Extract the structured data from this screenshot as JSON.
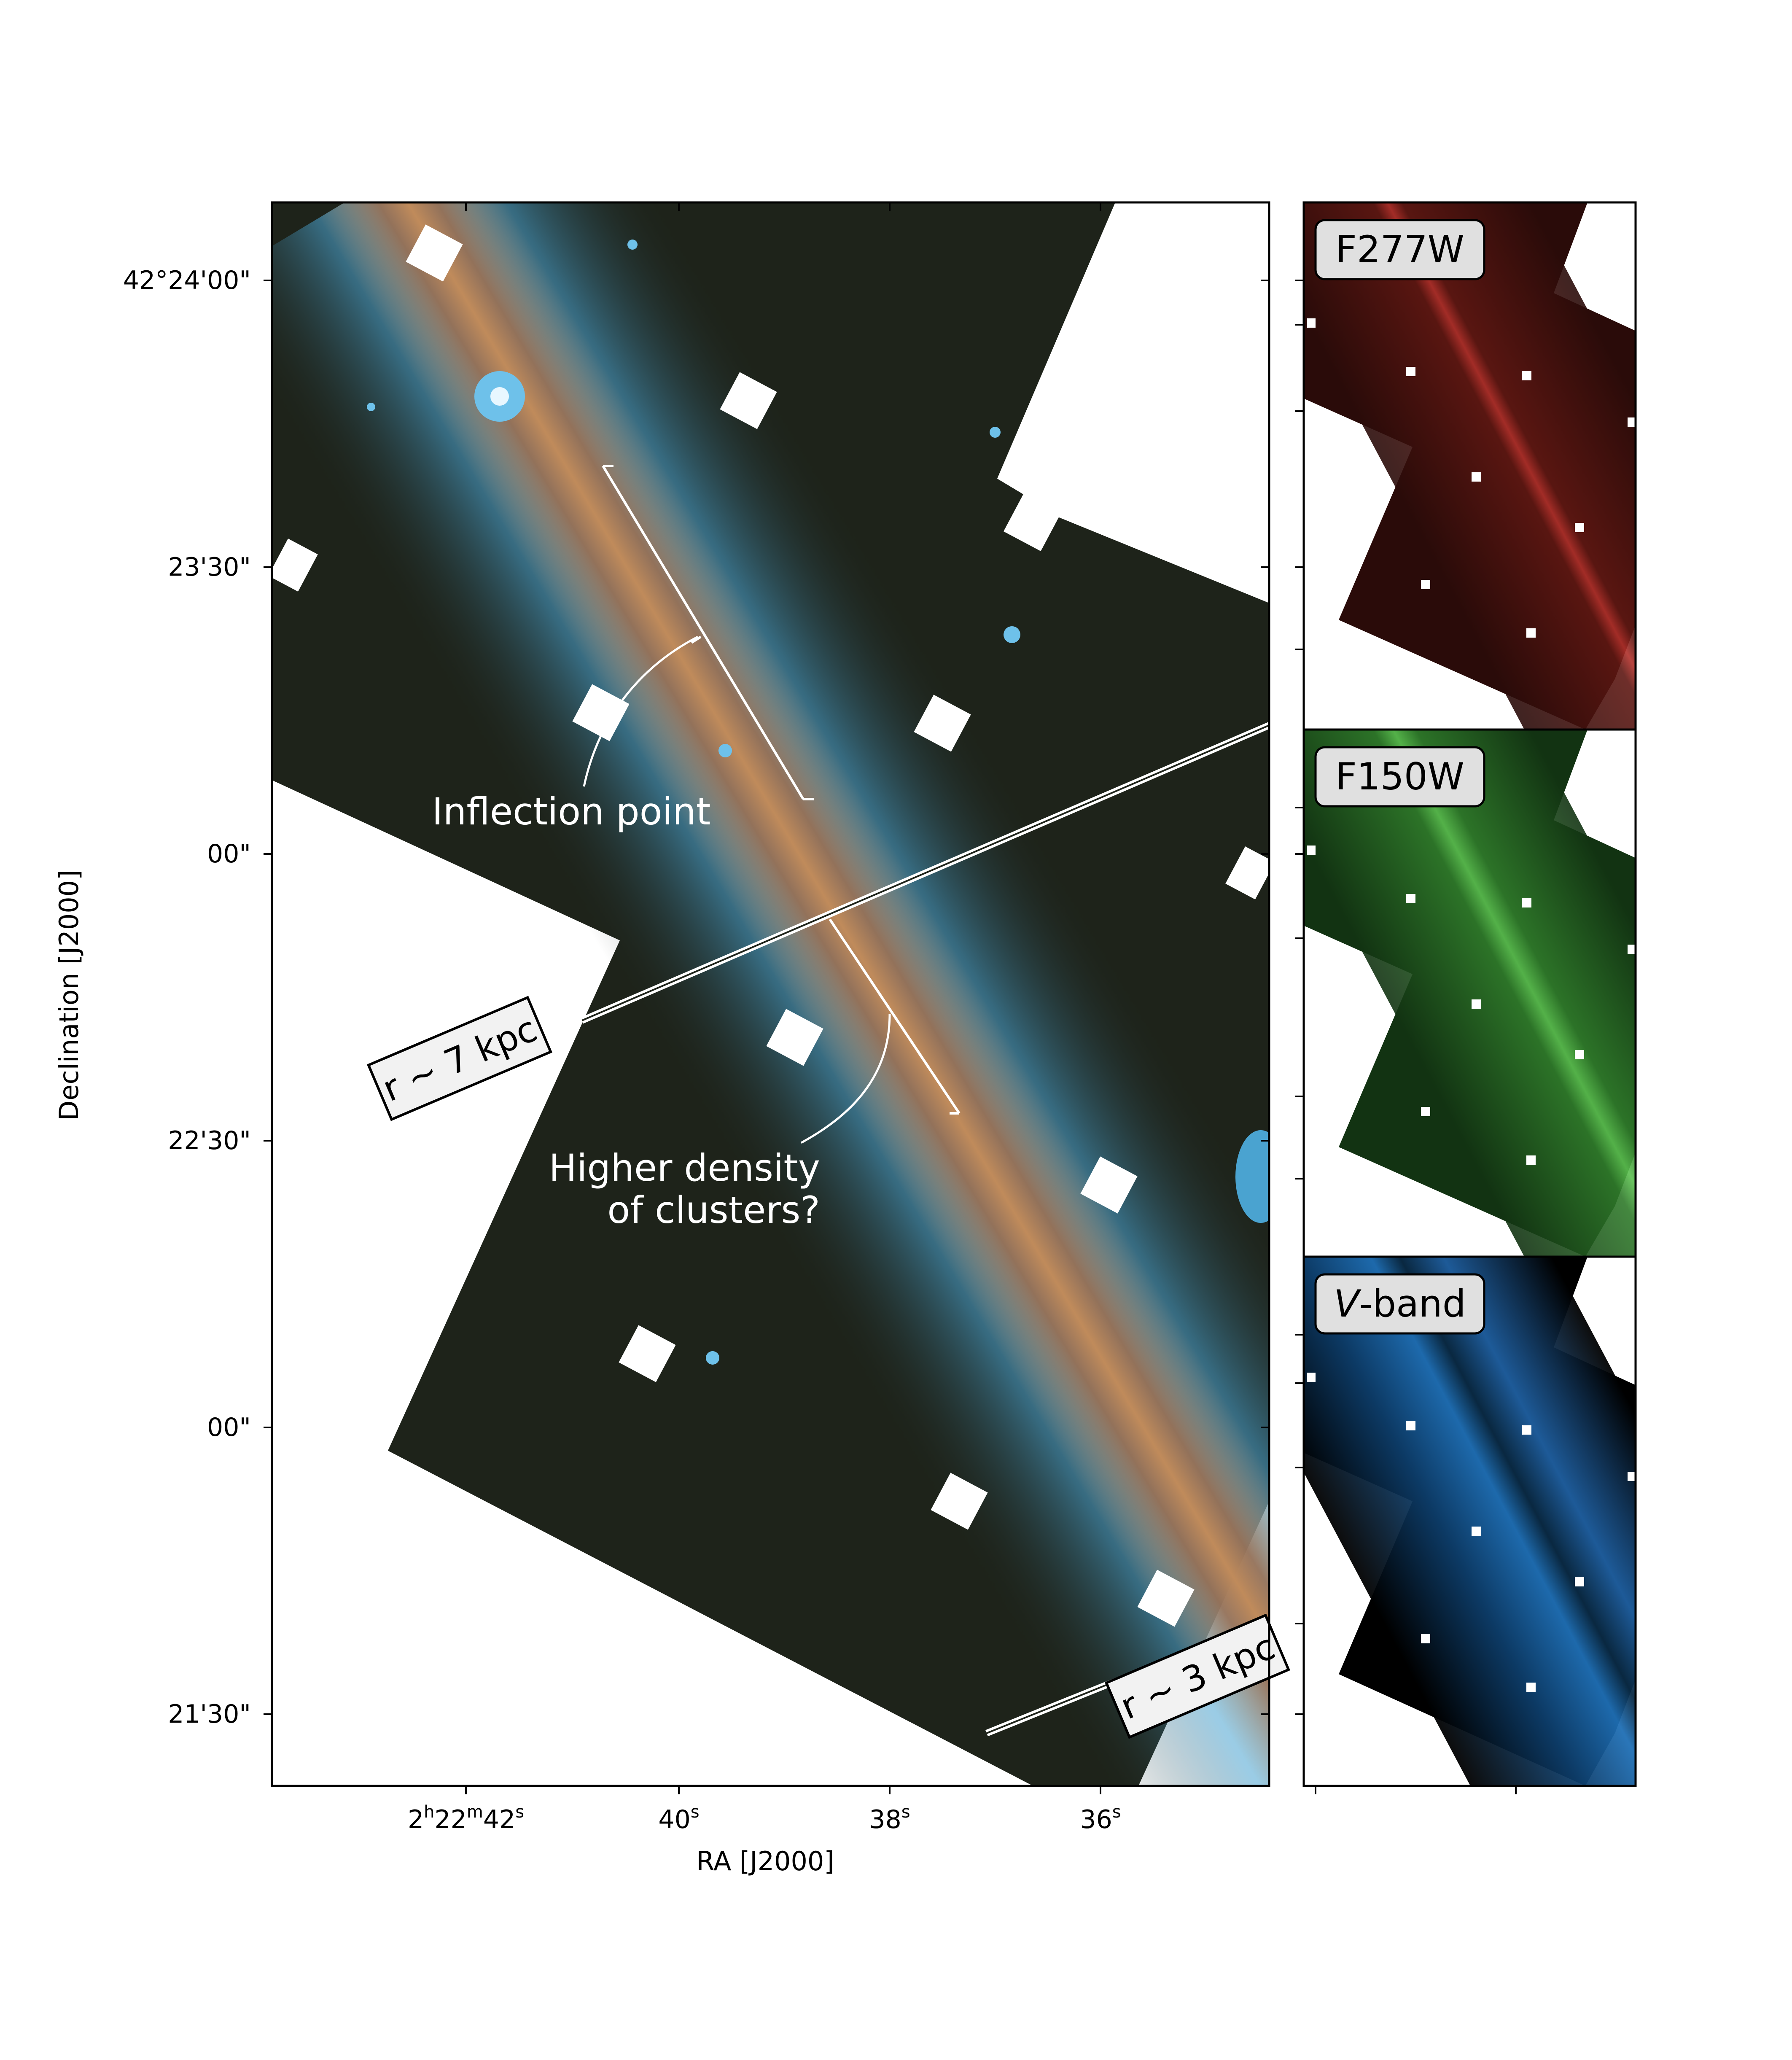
{
  "main_panel": {
    "y_axis_label": "Declination [J2000]",
    "x_axis_label": "RA [J2000]",
    "y_ticks": [
      "42°24'00\"",
      "23'30\"",
      "00\"",
      "22'30\"",
      "00\"",
      "21'30\""
    ],
    "x_ticks": [
      {
        "h": "2",
        "h_sup": "h",
        "m": "22",
        "m_sup": "m",
        "s": "42",
        "s_sup": "s"
      },
      {
        "s": "40",
        "s_sup": "s"
      },
      {
        "s": "38",
        "s_sup": "s"
      },
      {
        "s": "36",
        "s_sup": "s"
      }
    ],
    "annotations": {
      "inflection": "Inflection point",
      "density_line1": "Higher density",
      "density_line2": "of clusters?",
      "r7": "r ~ 7 kpc",
      "r3": "r ~ 3 kpc"
    }
  },
  "side_panels": [
    {
      "label": "F277W",
      "tint": "#7a1a14"
    },
    {
      "label": "F150W",
      "tint": "#2f7a2a"
    },
    {
      "label": "V",
      "label_suffix": "-band",
      "tint": "#1f5fa0"
    }
  ],
  "colors": {
    "galaxy_core": "#b08a63",
    "galaxy_halo": "#4aa3d0",
    "field": "#1e231a"
  }
}
